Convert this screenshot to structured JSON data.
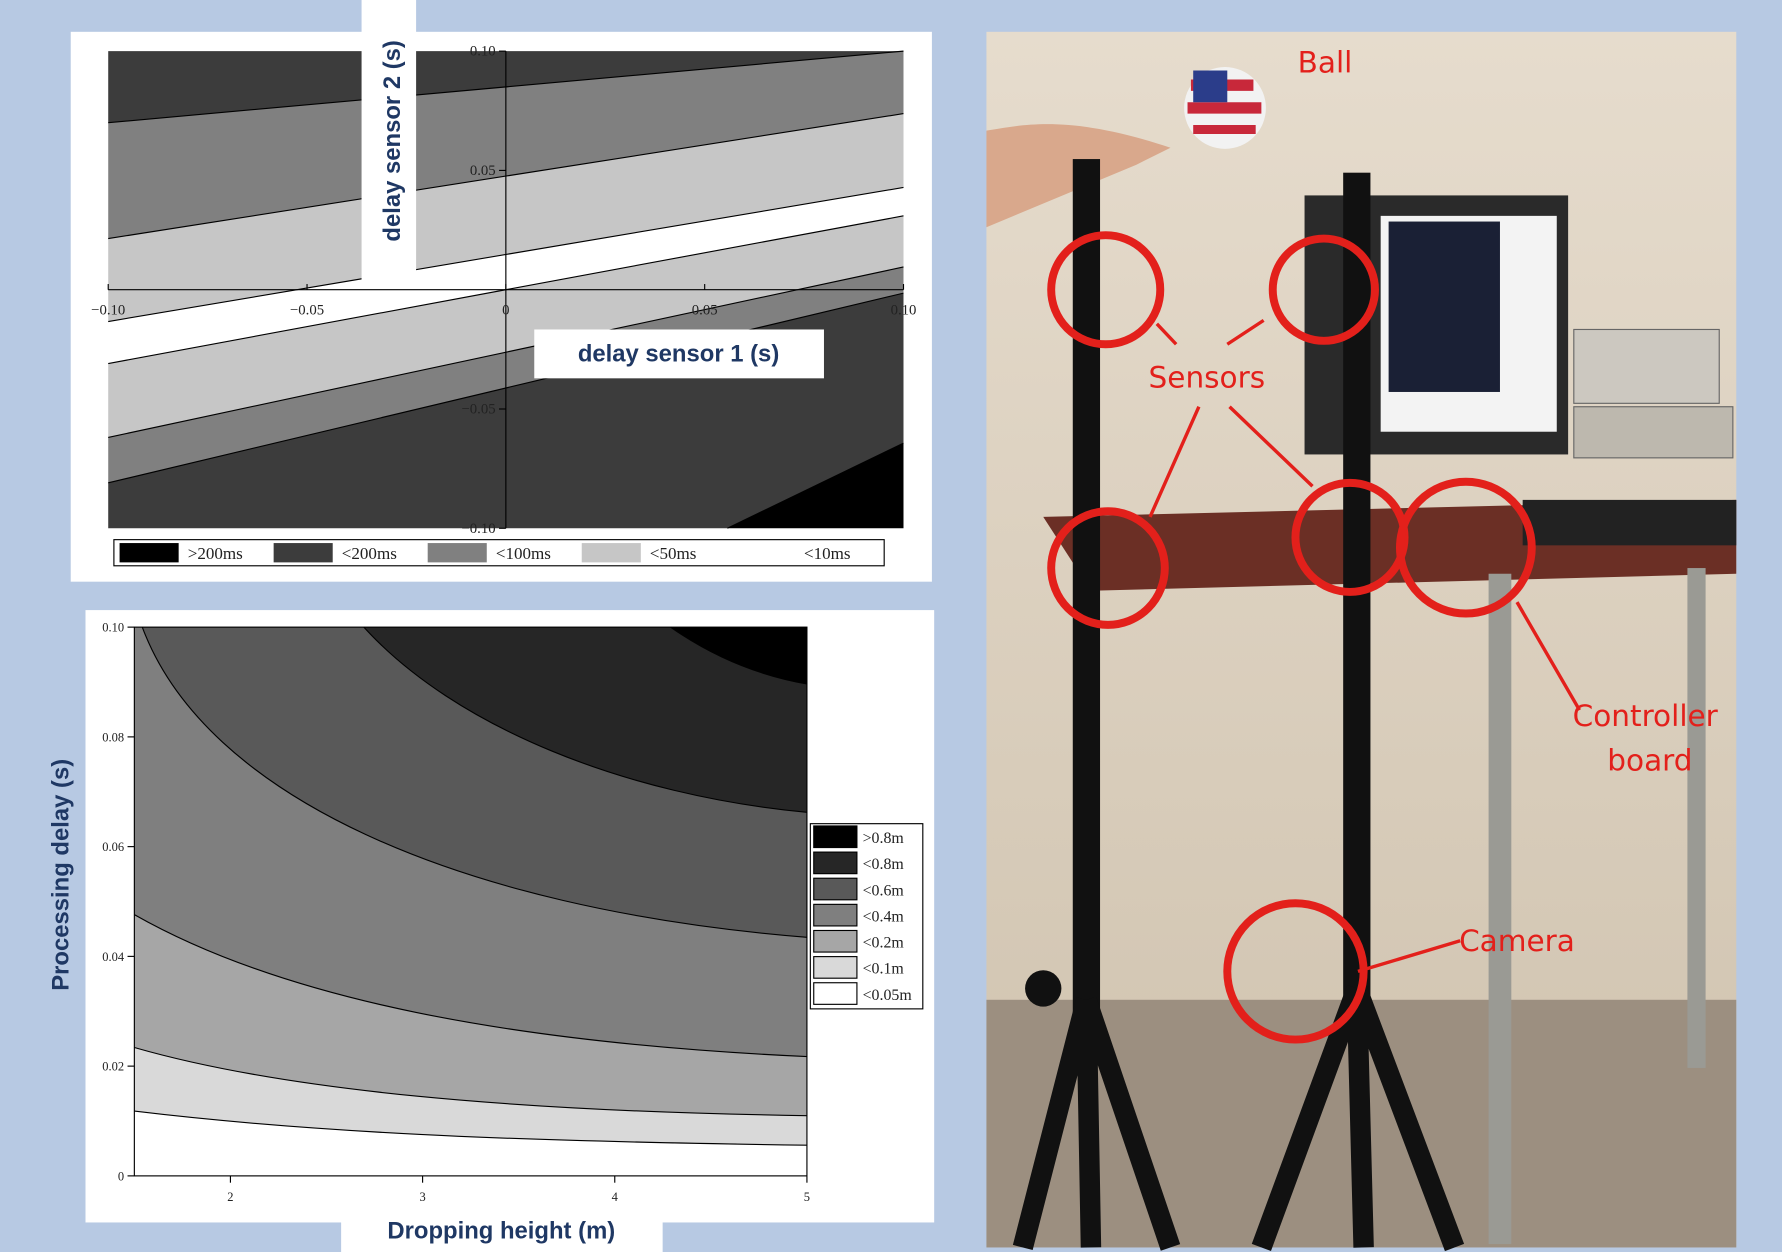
{
  "chart_data": [
    {
      "type": "contour",
      "xlabel": "delay sensor 1 (s)",
      "ylabel": "delay sensor 2 (s)",
      "xlim": [
        -0.1,
        0.1
      ],
      "ylim": [
        -0.1,
        0.1
      ],
      "xticks": [
        {
          "value": -0.1,
          "label": "−0.10"
        },
        {
          "value": -0.05,
          "label": "−0.05"
        },
        0,
        0.05,
        {
          "value": 0.1,
          "label": "0.10"
        }
      ],
      "yticks": [
        {
          "value": 0.1,
          "label": "0.10"
        },
        0.05,
        {
          "value": -0.05,
          "label": "−0.05"
        },
        {
          "value": -0.1,
          "label": "−0.10"
        }
      ],
      "axes_cross": true,
      "legend": "bottom",
      "levels": [
        {
          "name": ">200ms",
          "color": "#000000"
        },
        {
          "name": "<200ms",
          "color": "#3c3c3c"
        },
        {
          "name": "<100ms",
          "color": "#808080"
        },
        {
          "name": "<50ms",
          "color": "#c6c6c6"
        },
        {
          "name": "<10ms",
          "color": "#ffffff"
        }
      ]
    },
    {
      "type": "contour",
      "xlabel": "Dropping height (m)",
      "ylabel": "Processing delay (s)",
      "xlim": [
        1.5,
        5
      ],
      "ylim": [
        0,
        0.1
      ],
      "xticks": [
        2,
        3,
        4,
        5
      ],
      "yticks": [
        0,
        0.02,
        0.04,
        0.06,
        0.08,
        {
          "value": 0.1,
          "label": "0.10"
        }
      ],
      "axes_cross": false,
      "legend": "right",
      "levels": [
        {
          "name": ">0.8m",
          "color": "#000000"
        },
        {
          "name": "<0.8m",
          "color": "#262626"
        },
        {
          "name": "<0.6m",
          "color": "#595959"
        },
        {
          "name": "<0.4m",
          "color": "#7f7f7f"
        },
        {
          "name": "<0.2m",
          "color": "#a6a6a6"
        },
        {
          "name": "<0.1m",
          "color": "#d9d9d9"
        },
        {
          "name": "<0.05m",
          "color": "#ffffff"
        }
      ]
    }
  ],
  "photo": {
    "labels": {
      "ball": "Ball",
      "sensors": "Sensors",
      "controller": [
        "Controller",
        "board"
      ],
      "camera": "Camera"
    }
  }
}
